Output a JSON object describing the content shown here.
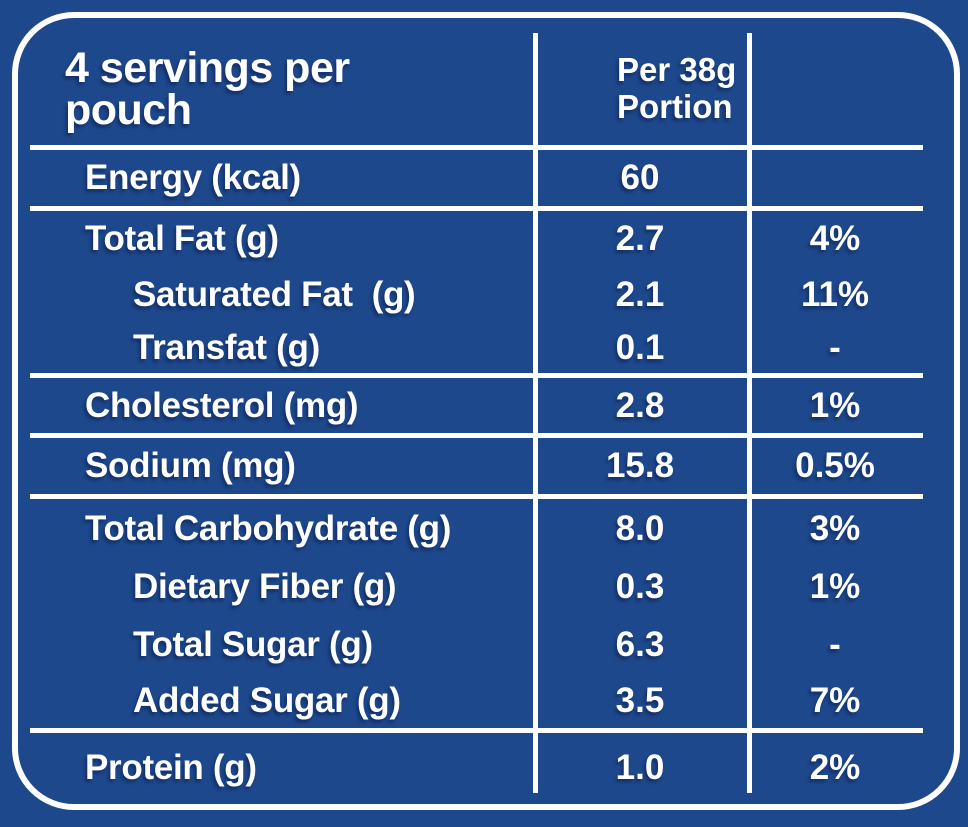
{
  "colors": {
    "background": "#1e488c",
    "foreground": "#ffffff"
  },
  "header": {
    "servings": "4 servings per\npouch",
    "portion_column": "Per 38g\nPortion",
    "daily_value_column": ""
  },
  "rows": [
    {
      "name": "Energy (kcal)",
      "amount": "60",
      "daily_value": "",
      "indent": false,
      "group_end": true
    },
    {
      "name": "Total Fat (g)",
      "amount": "2.7",
      "daily_value": "4%",
      "indent": false,
      "group_end": false
    },
    {
      "name": "Saturated Fat  (g)",
      "amount": "2.1",
      "daily_value": "11%",
      "indent": true,
      "group_end": false
    },
    {
      "name": "Transfat (g)",
      "amount": "0.1",
      "daily_value": "-",
      "indent": true,
      "group_end": true
    },
    {
      "name": "Cholesterol (mg)",
      "amount": "2.8",
      "daily_value": "1%",
      "indent": false,
      "group_end": true
    },
    {
      "name": "Sodium (mg)",
      "amount": "15.8",
      "daily_value": "0.5%",
      "indent": false,
      "group_end": true
    },
    {
      "name": "Total Carbohydrate (g)",
      "amount": "8.0",
      "daily_value": "3%",
      "indent": false,
      "group_end": false
    },
    {
      "name": "Dietary Fiber (g)",
      "amount": "0.3",
      "daily_value": "1%",
      "indent": true,
      "group_end": false
    },
    {
      "name": "Total Sugar (g)",
      "amount": "6.3",
      "daily_value": "-",
      "indent": true,
      "group_end": false
    },
    {
      "name": "Added Sugar (g)",
      "amount": "3.5",
      "daily_value": "7%",
      "indent": true,
      "group_end": true
    },
    {
      "name": "Protein (g)",
      "amount": "1.0",
      "daily_value": "2%",
      "indent": false,
      "group_end": false
    }
  ]
}
